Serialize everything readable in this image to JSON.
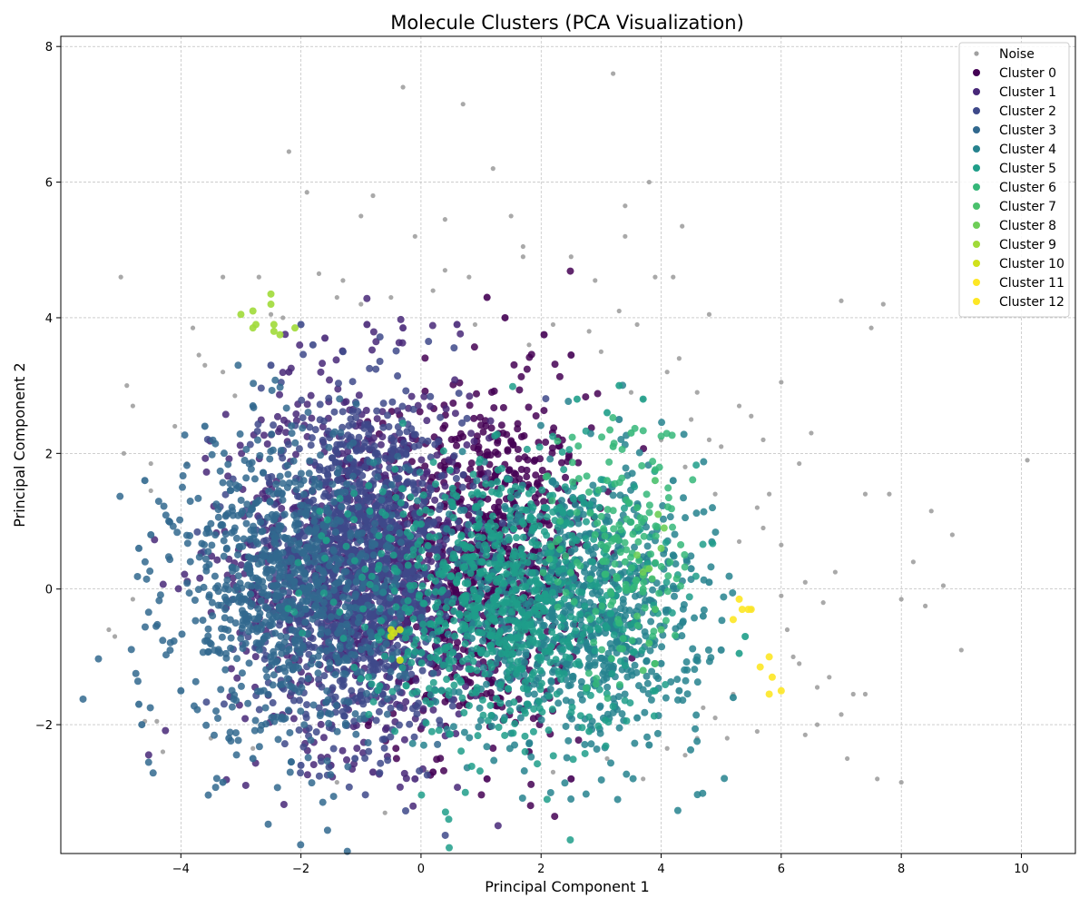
{
  "chart_data": {
    "type": "scatter",
    "title": "Molecule Clusters (PCA Visualization)",
    "xlabel": "Principal Component 1",
    "ylabel": "Principal Component 2",
    "xlim": [
      -6.0,
      10.9
    ],
    "ylim": [
      -3.9,
      8.15
    ],
    "xticks": [
      -4,
      -2,
      0,
      2,
      4,
      6,
      8,
      10
    ],
    "yticks": [
      -2,
      0,
      2,
      4,
      6,
      8
    ],
    "xtick_labels": [
      "−4",
      "−2",
      "0",
      "2",
      "4",
      "6",
      "8",
      "10"
    ],
    "ytick_labels": [
      "−2",
      "0",
      "2",
      "4",
      "6",
      "8"
    ],
    "grid": true,
    "legend_position": "top-right",
    "series": [
      {
        "name": "Noise",
        "color": "#a0a0a0",
        "center": [
          2.0,
          0.5
        ],
        "spread": [
          2.5,
          1.8
        ],
        "points": [
          [
            -5.2,
            -0.6
          ],
          [
            -5.1,
            -0.7
          ],
          [
            -5.0,
            4.6
          ],
          [
            -4.9,
            3.0
          ],
          [
            -4.95,
            2.0
          ],
          [
            -4.8,
            2.7
          ],
          [
            -4.8,
            -0.15
          ],
          [
            -4.6,
            -1.95
          ],
          [
            -4.5,
            1.45
          ],
          [
            -4.4,
            -1.95
          ],
          [
            -4.3,
            -2.4
          ],
          [
            -3.8,
            3.85
          ],
          [
            -3.7,
            3.45
          ],
          [
            -3.6,
            3.3
          ],
          [
            -3.3,
            4.6
          ],
          [
            -3.3,
            3.2
          ],
          [
            -3.1,
            2.85
          ],
          [
            -2.7,
            4.6
          ],
          [
            -2.5,
            4.05
          ],
          [
            -2.2,
            6.45
          ],
          [
            -1.9,
            5.85
          ],
          [
            -1.7,
            4.65
          ],
          [
            -1.3,
            4.55
          ],
          [
            -1.0,
            5.5
          ],
          [
            -0.8,
            5.8
          ],
          [
            -0.3,
            7.4
          ],
          [
            -0.1,
            5.2
          ],
          [
            0.4,
            5.45
          ],
          [
            0.7,
            7.15
          ],
          [
            0.4,
            4.7
          ],
          [
            0.8,
            4.6
          ],
          [
            1.2,
            6.2
          ],
          [
            1.5,
            5.5
          ],
          [
            1.7,
            4.9
          ],
          [
            1.7,
            5.05
          ],
          [
            2.5,
            4.9
          ],
          [
            2.9,
            4.55
          ],
          [
            3.2,
            7.6
          ],
          [
            3.3,
            4.1
          ],
          [
            3.4,
            5.65
          ],
          [
            3.4,
            5.2
          ],
          [
            3.8,
            6.0
          ],
          [
            3.9,
            4.6
          ],
          [
            4.2,
            4.6
          ],
          [
            4.35,
            5.35
          ],
          [
            4.3,
            3.4
          ],
          [
            4.8,
            4.05
          ],
          [
            3.6,
            3.9
          ],
          [
            4.6,
            2.9
          ],
          [
            5.0,
            2.1
          ],
          [
            5.3,
            2.7
          ],
          [
            5.5,
            2.55
          ],
          [
            5.7,
            2.2
          ],
          [
            6.0,
            3.05
          ],
          [
            6.3,
            1.85
          ],
          [
            6.5,
            2.3
          ],
          [
            7.0,
            4.25
          ],
          [
            7.4,
            1.4
          ],
          [
            7.5,
            3.85
          ],
          [
            7.7,
            4.2
          ],
          [
            7.8,
            1.4
          ],
          [
            8.2,
            0.4
          ],
          [
            8.5,
            1.15
          ],
          [
            8.85,
            0.8
          ],
          [
            9.0,
            -0.9
          ],
          [
            10.1,
            1.9
          ],
          [
            8.7,
            0.05
          ],
          [
            8.4,
            -0.25
          ],
          [
            8.0,
            -0.15
          ],
          [
            8.0,
            -2.85
          ],
          [
            7.6,
            -2.8
          ],
          [
            7.4,
            -1.55
          ],
          [
            7.2,
            -1.55
          ],
          [
            7.1,
            -2.5
          ],
          [
            7.0,
            -1.85
          ],
          [
            6.8,
            -1.3
          ],
          [
            6.6,
            -1.45
          ],
          [
            6.6,
            -2.0
          ],
          [
            6.4,
            -2.15
          ],
          [
            6.2,
            -1.0
          ],
          [
            6.0,
            -0.1
          ],
          [
            6.0,
            0.65
          ],
          [
            5.8,
            1.4
          ],
          [
            5.6,
            1.2
          ],
          [
            5.3,
            0.7
          ],
          [
            5.2,
            -1.55
          ],
          [
            5.1,
            -2.2
          ],
          [
            4.9,
            -1.9
          ],
          [
            4.7,
            -1.75
          ],
          [
            4.4,
            -2.45
          ],
          [
            4.1,
            -2.35
          ],
          [
            3.7,
            -2.8
          ],
          [
            0.1,
            -2.7
          ],
          [
            -0.6,
            -3.3
          ],
          [
            -1.4,
            -2.85
          ],
          [
            -2.8,
            -2.35
          ],
          [
            -3.5,
            -2.2
          ],
          [
            -4.5,
            1.85
          ],
          [
            -4.1,
            2.4
          ],
          [
            -3.9,
            1.85
          ],
          [
            3.0,
            3.5
          ],
          [
            3.5,
            2.9
          ],
          [
            3.7,
            2.8
          ],
          [
            4.0,
            2.2
          ],
          [
            4.5,
            2.5
          ],
          [
            4.4,
            1.8
          ],
          [
            4.9,
            1.4
          ],
          [
            5.5,
            -0.3
          ],
          [
            6.4,
            0.1
          ],
          [
            6.9,
            0.25
          ],
          [
            6.7,
            -0.2
          ],
          [
            4.6,
            -2.2
          ],
          [
            1.8,
            3.6
          ],
          [
            2.8,
            3.8
          ],
          [
            -0.5,
            4.3
          ],
          [
            -1.0,
            4.2
          ],
          [
            0.2,
            4.4
          ],
          [
            2.2,
            3.9
          ],
          [
            -2.3,
            4.0
          ],
          [
            -1.4,
            4.3
          ],
          [
            0.9,
            3.9
          ],
          [
            4.1,
            3.2
          ],
          [
            4.8,
            2.2
          ],
          [
            5.7,
            0.9
          ],
          [
            6.1,
            -0.6
          ],
          [
            6.3,
            -1.1
          ],
          [
            5.6,
            -2.1
          ],
          [
            3.1,
            -2.5
          ],
          [
            2.2,
            -2.7
          ]
        ]
      },
      {
        "name": "Cluster 0",
        "color": "#440154",
        "center": [
          1.0,
          0.4
        ],
        "spread": [
          0.9,
          1.25
        ],
        "points": [
          [
            1.4,
            4.0
          ],
          [
            1.1,
            4.3
          ],
          [
            2.05,
            3.75
          ],
          [
            2.5,
            3.45
          ],
          [
            0.2,
            -2.7
          ],
          [
            1.1,
            -2.8
          ],
          [
            1.8,
            -2.4
          ],
          [
            2.5,
            -2.8
          ]
        ]
      },
      {
        "name": "Cluster 1",
        "color": "#482878",
        "center": [
          -1.0,
          0.4
        ],
        "spread": [
          1.1,
          1.35
        ],
        "points": [
          [
            -1.6,
            3.7
          ],
          [
            -0.9,
            3.9
          ],
          [
            -0.3,
            3.85
          ],
          [
            0.6,
            3.9
          ],
          [
            -2.2,
            3.2
          ],
          [
            -1.5,
            -2.6
          ],
          [
            -0.8,
            -2.7
          ],
          [
            -0.1,
            -2.8
          ]
        ]
      },
      {
        "name": "Cluster 2",
        "color": "#3e4989",
        "center": [
          -1.0,
          0.3
        ],
        "spread": [
          0.85,
          1.15
        ],
        "points": [
          [
            -2.0,
            3.9
          ],
          [
            -1.8,
            3.6
          ],
          [
            -1.3,
            3.5
          ],
          [
            -2.5,
            3.3
          ],
          [
            -2.0,
            -2.6
          ],
          [
            -1.1,
            -2.5
          ]
        ]
      },
      {
        "name": "Cluster 3",
        "color": "#31688e",
        "center": [
          -2.2,
          0.0
        ],
        "spread": [
          0.95,
          1.1
        ],
        "points": [
          [
            -4.7,
            0.6
          ],
          [
            -4.6,
            1.6
          ],
          [
            -4.7,
            -1.7
          ],
          [
            -4.65,
            -2.0
          ],
          [
            -4.5,
            0.8
          ],
          [
            -3.3,
            -2.85
          ],
          [
            -2.8,
            -2.5
          ],
          [
            -3.6,
            2.4
          ],
          [
            -4.2,
            1.0
          ],
          [
            -4.0,
            -1.5
          ],
          [
            -2.8,
            2.7
          ],
          [
            -3.2,
            -2.2
          ]
        ]
      },
      {
        "name": "Cluster 4",
        "color": "#26828e",
        "center": [
          2.6,
          -0.3
        ],
        "spread": [
          1.05,
          1.0
        ],
        "points": [
          [
            4.2,
            0.5
          ],
          [
            4.5,
            0.3
          ],
          [
            4.8,
            0.1
          ],
          [
            5.0,
            -0.9
          ],
          [
            5.2,
            -1.6
          ],
          [
            4.3,
            -1.5
          ],
          [
            4.0,
            -1.1
          ],
          [
            3.6,
            -1.9
          ],
          [
            3.8,
            -2.3
          ],
          [
            4.7,
            -0.4
          ],
          [
            4.2,
            1.6
          ],
          [
            3.3,
            2.5
          ]
        ]
      },
      {
        "name": "Cluster 5",
        "color": "#1f9e89",
        "center": [
          1.3,
          -0.1
        ],
        "spread": [
          1.2,
          1.05
        ],
        "points": [
          [
            3.3,
            3.0
          ],
          [
            3.1,
            2.6
          ],
          [
            2.6,
            2.8
          ],
          [
            3.7,
            2.8
          ],
          [
            3.9,
            -1.5
          ],
          [
            5.4,
            -0.7
          ],
          [
            5.3,
            -0.95
          ],
          [
            2.8,
            -2.1
          ]
        ]
      },
      {
        "name": "Cluster 6",
        "color": "#35b779",
        "center": [
          3.3,
          0.5
        ],
        "spread": [
          0.6,
          1.0
        ],
        "points": [
          [
            3.2,
            2.1
          ],
          [
            3.5,
            2.3
          ],
          [
            3.1,
            1.6
          ],
          [
            3.6,
            1.2
          ],
          [
            3.4,
            0.4
          ],
          [
            2.9,
            0.8
          ],
          [
            3.7,
            0.0
          ],
          [
            3.3,
            -0.5
          ]
        ]
      },
      {
        "name": "Cluster 7",
        "color": "#4ac16d",
        "center": [
          3.8,
          -0.4
        ],
        "spread": [
          0.25,
          0.5
        ],
        "points": [
          [
            3.9,
            1.6
          ],
          [
            3.7,
            0.2
          ],
          [
            3.75,
            0.3
          ],
          [
            3.85,
            0.15
          ],
          [
            3.9,
            -0.3
          ],
          [
            4.0,
            -0.6
          ],
          [
            3.8,
            -0.8
          ],
          [
            3.9,
            -1.1
          ],
          [
            3.7,
            -1.2
          ],
          [
            3.6,
            -0.4
          ]
        ]
      },
      {
        "name": "Cluster 8",
        "color": "#6ece58",
        "center": [
          3.8,
          0.4
        ],
        "spread": [
          0.25,
          0.6
        ],
        "points": [
          [
            3.95,
            1.1
          ],
          [
            4.05,
            0.9
          ],
          [
            3.7,
            0.25
          ],
          [
            3.8,
            0.3
          ],
          [
            3.6,
            0.5
          ],
          [
            4.0,
            0.6
          ]
        ]
      },
      {
        "name": "Cluster 9",
        "color": "#a0da39",
        "center": [
          -2.6,
          4.0
        ],
        "spread": [
          0.2,
          0.2
        ],
        "points": [
          [
            -3.0,
            4.05
          ],
          [
            -2.8,
            4.1
          ],
          [
            -2.5,
            4.35
          ],
          [
            -2.5,
            4.2
          ],
          [
            -2.75,
            3.9
          ],
          [
            -2.8,
            3.85
          ],
          [
            -2.45,
            3.8
          ],
          [
            -2.35,
            3.75
          ],
          [
            -2.1,
            3.85
          ],
          [
            -2.45,
            3.9
          ]
        ]
      },
      {
        "name": "Cluster 10",
        "color": "#d0e11c",
        "center": [
          -0.45,
          -0.75
        ],
        "spread": [
          0.05,
          0.1
        ],
        "points": [
          [
            -0.5,
            -0.6
          ],
          [
            -0.45,
            -0.65
          ],
          [
            -0.35,
            -0.6
          ],
          [
            -0.5,
            -0.7
          ],
          [
            -0.35,
            -1.05
          ]
        ]
      },
      {
        "name": "Cluster 11",
        "color": "#fde725",
        "center": [
          5.4,
          -0.4
        ],
        "spread": [
          0.1,
          0.1
        ],
        "points": [
          [
            5.3,
            -0.15
          ],
          [
            5.35,
            -0.3
          ],
          [
            5.45,
            -0.3
          ],
          [
            5.2,
            -0.45
          ],
          [
            5.5,
            -0.3
          ]
        ]
      },
      {
        "name": "Cluster 12",
        "color": "#fde725",
        "center": [
          5.8,
          -1.3
        ],
        "spread": [
          0.15,
          0.2
        ],
        "points": [
          [
            5.65,
            -1.15
          ],
          [
            5.8,
            -1.0
          ],
          [
            5.85,
            -1.3
          ],
          [
            5.8,
            -1.55
          ],
          [
            6.0,
            -1.5
          ]
        ]
      }
    ]
  }
}
